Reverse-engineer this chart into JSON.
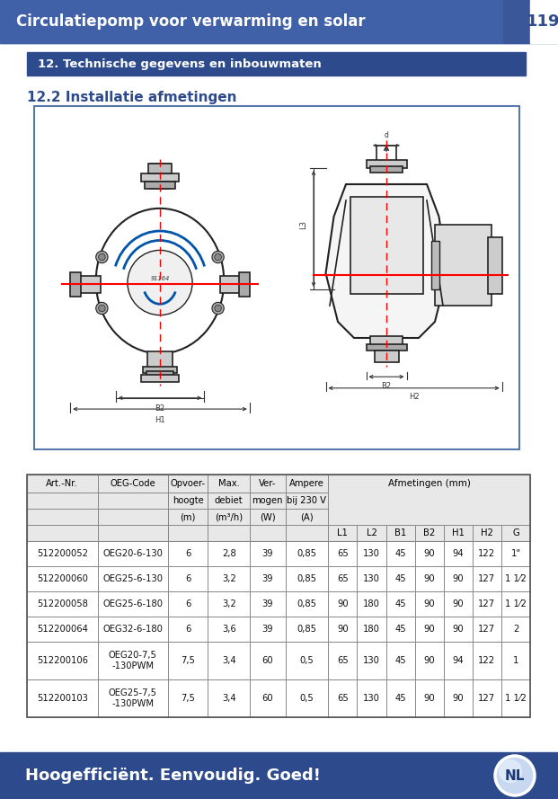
{
  "header_title": "Circulatiepomp voor verwarming en solar",
  "header_page": "119",
  "header_bg": "#3a5799",
  "header_text_color": "#ffffff",
  "section_title": "12. Technische gegevens en inbouwmaten",
  "section_bg": "#2c4a8c",
  "section_text_color": "#ffffff",
  "subsection_title": "12.2 Installatie afmetingen",
  "subsection_color": "#2c4a8c",
  "footer_text": "Hoogefficiënt. Eenvoudig. Goed!",
  "footer_bg": "#2c4a8c",
  "footer_text_color": "#ffffff",
  "table_data": [
    [
      "512200052",
      "OEG20-6-130",
      "6",
      "2,8",
      "39",
      "0,85",
      "65",
      "130",
      "45",
      "90",
      "94",
      "122",
      "1\""
    ],
    [
      "512200060",
      "OEG25-6-130",
      "6",
      "3,2",
      "39",
      "0,85",
      "65",
      "130",
      "45",
      "90",
      "90",
      "127",
      "1 1⁄2"
    ],
    [
      "512200058",
      "OEG25-6-180",
      "6",
      "3,2",
      "39",
      "0,85",
      "90",
      "180",
      "45",
      "90",
      "90",
      "127",
      "1 1⁄2"
    ],
    [
      "512200064",
      "OEG32-6-180",
      "6",
      "3,6",
      "39",
      "0,85",
      "90",
      "180",
      "45",
      "90",
      "90",
      "127",
      "2"
    ],
    [
      "512200106",
      "OEG20-7,5\n-130PWM",
      "7,5",
      "3,4",
      "60",
      "0,5",
      "65",
      "130",
      "45",
      "90",
      "94",
      "122",
      "1"
    ],
    [
      "512200103",
      "OEG25-7,5\n-130PWM",
      "7,5",
      "3,4",
      "60",
      "0,5",
      "65",
      "130",
      "45",
      "90",
      "90",
      "127",
      "1 1⁄2"
    ]
  ]
}
